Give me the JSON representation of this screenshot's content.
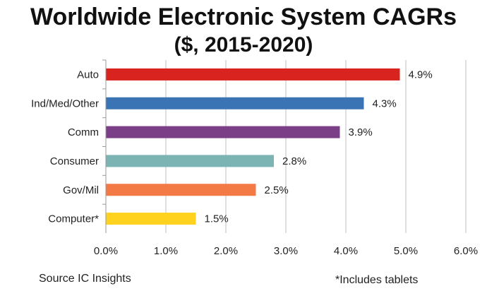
{
  "chart_data": {
    "type": "bar",
    "orientation": "horizontal",
    "title": "Worldwide Electronic System CAGRs",
    "subtitle": "($, 2015-2020)",
    "categories": [
      "Auto",
      "Ind/Med/Other",
      "Comm",
      "Consumer",
      "Gov/Mil",
      "Computer*"
    ],
    "values": [
      4.9,
      4.3,
      3.9,
      2.8,
      2.5,
      1.5
    ],
    "data_labels": [
      "4.9%",
      "4.3%",
      "3.9%",
      "2.8%",
      "2.5%",
      "1.5%"
    ],
    "colors": [
      "#d9231e",
      "#3a74b5",
      "#7b3f87",
      "#7cb3b3",
      "#f47a45",
      "#ffd21f"
    ],
    "xlim": [
      0,
      6
    ],
    "x_ticks": [
      "0.0%",
      "1.0%",
      "2.0%",
      "3.0%",
      "4.0%",
      "5.0%",
      "6.0%"
    ],
    "grid": "vertical",
    "legend": "none"
  },
  "footer": {
    "source": "Source  IC Insights",
    "note": "*Includes tablets"
  }
}
